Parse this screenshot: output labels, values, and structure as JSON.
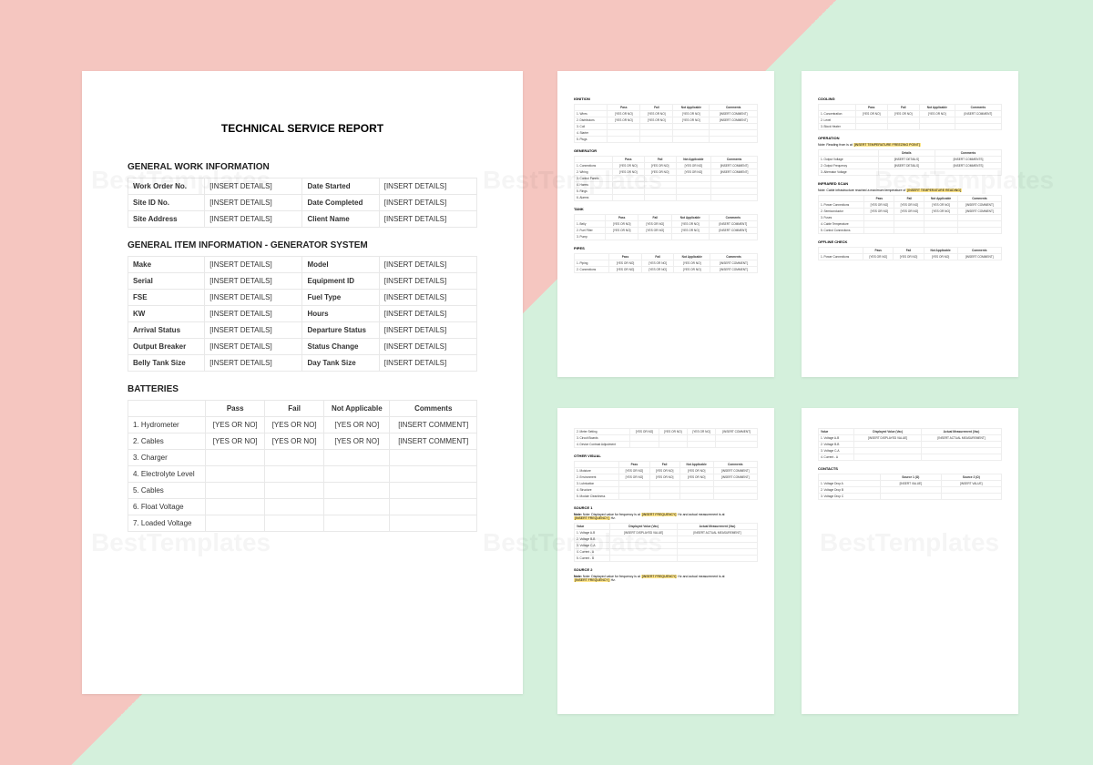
{
  "watermark_text": "BestTemplates",
  "main": {
    "title": "TECHNICAL SERVICE REPORT",
    "general_work": {
      "heading": "GENERAL WORK INFORMATION",
      "rows": [
        {
          "l1": "Work Order No.",
          "v1": "[INSERT DETAILS]",
          "l2": "Date Started",
          "v2": "[INSERT DETAILS]"
        },
        {
          "l1": "Site ID No.",
          "v1": "[INSERT DETAILS]",
          "l2": "Date Completed",
          "v2": "[INSERT DETAILS]"
        },
        {
          "l1": "Site Address",
          "v1": "[INSERT DETAILS]",
          "l2": "Client Name",
          "v2": "[INSERT DETAILS]"
        }
      ]
    },
    "general_item": {
      "heading": "GENERAL ITEM INFORMATION - GENERATOR SYSTEM",
      "rows": [
        {
          "l1": "Make",
          "v1": "[INSERT DETAILS]",
          "l2": "Model",
          "v2": "[INSERT DETAILS]"
        },
        {
          "l1": "Serial",
          "v1": "[INSERT DETAILS]",
          "l2": "Equipment ID",
          "v2": "[INSERT DETAILS]"
        },
        {
          "l1": "FSE",
          "v1": "[INSERT DETAILS]",
          "l2": "Fuel Type",
          "v2": "[INSERT DETAILS]"
        },
        {
          "l1": "KW",
          "v1": "[INSERT DETAILS]",
          "l2": "Hours",
          "v2": "[INSERT DETAILS]"
        },
        {
          "l1": "Arrival Status",
          "v1": "[INSERT DETAILS]",
          "l2": "Departure Status",
          "v2": "[INSERT DETAILS]"
        },
        {
          "l1": "Output Breaker",
          "v1": "[INSERT DETAILS]",
          "l2": "Status Change",
          "v2": "[INSERT DETAILS]"
        },
        {
          "l1": "Belly Tank Size",
          "v1": "[INSERT DETAILS]",
          "l2": "Day Tank Size",
          "v2": "[INSERT DETAILS]"
        }
      ]
    },
    "batteries": {
      "heading": "BATTERIES",
      "headers": [
        "",
        "Pass",
        "Fail",
        "Not Applicable",
        "Comments"
      ],
      "rows": [
        {
          "n": "1. Hydrometer",
          "p": "[YES OR NO]",
          "f": "[YES OR NO]",
          "na": "[YES OR NO]",
          "c": "[INSERT COMMENT]"
        },
        {
          "n": "2. Cables",
          "p": "[YES OR NO]",
          "f": "[YES OR NO]",
          "na": "[YES OR NO]",
          "c": "[INSERT COMMENT]"
        },
        {
          "n": "3. Charger",
          "p": "",
          "f": "",
          "na": "",
          "c": ""
        },
        {
          "n": "4. Electrolyte Level",
          "p": "",
          "f": "",
          "na": "",
          "c": ""
        },
        {
          "n": "5. Cables",
          "p": "",
          "f": "",
          "na": "",
          "c": ""
        },
        {
          "n": "6. Float Voltage",
          "p": "",
          "f": "",
          "na": "",
          "c": ""
        },
        {
          "n": "7. Loaded Voltage",
          "p": "",
          "f": "",
          "na": "",
          "c": ""
        }
      ]
    }
  },
  "p2": {
    "sections": [
      {
        "title": "IGNITION",
        "cols": [
          "",
          "Pass",
          "Fail",
          "Not Applicable",
          "Comments"
        ],
        "rows": [
          {
            "n": "1. Wires",
            "p": "[YES OR NO]",
            "f": "[YES OR NO]",
            "na": "[YES OR NO]",
            "c": "[INSERT COMMENT]"
          },
          {
            "n": "2. Distributors",
            "p": "[YES OR NO]",
            "f": "[YES OR NO]",
            "na": "[YES OR NO]",
            "c": "[INSERT COMMENT]"
          },
          {
            "n": "3. Coil",
            "p": "",
            "f": "",
            "na": "",
            "c": ""
          },
          {
            "n": "4. Starter",
            "p": "",
            "f": "",
            "na": "",
            "c": ""
          },
          {
            "n": "5. Plugs",
            "p": "",
            "f": "",
            "na": "",
            "c": ""
          }
        ]
      },
      {
        "title": "GENERATOR",
        "cols": [
          "",
          "Pass",
          "Fail",
          "Not Applicable",
          "Comments"
        ],
        "rows": [
          {
            "n": "1. Connections",
            "p": "[YES OR NO]",
            "f": "[YES OR NO]",
            "na": "[YES OR NO]",
            "c": "[INSERT COMMENT]"
          },
          {
            "n": "2. Wiring",
            "p": "[YES OR NO]",
            "f": "[YES OR NO]",
            "na": "[YES OR NO]",
            "c": "[INSERT COMMENT]"
          },
          {
            "n": "3. Control Panels",
            "p": "",
            "f": "",
            "na": "",
            "c": ""
          },
          {
            "n": "4. Harms",
            "p": "",
            "f": "",
            "na": "",
            "c": ""
          },
          {
            "n": "5. Rings",
            "p": "",
            "f": "",
            "na": "",
            "c": ""
          },
          {
            "n": "6. Alarms",
            "p": "",
            "f": "",
            "na": "",
            "c": ""
          }
        ]
      },
      {
        "title": "TANK",
        "cols": [
          "",
          "Pass",
          "Fail",
          "Not Applicable",
          "Comments"
        ],
        "rows": [
          {
            "n": "1. Belly",
            "p": "[YES OR NO]",
            "f": "[YES OR NO]",
            "na": "[YES OR NO]",
            "c": "[INSERT COMMENT]"
          },
          {
            "n": "2. Fuel Filter",
            "p": "[YES OR NO]",
            "f": "[YES OR NO]",
            "na": "[YES OR NO]",
            "c": "[INSERT COMMENT]"
          },
          {
            "n": "3. Pump",
            "p": "",
            "f": "",
            "na": "",
            "c": ""
          }
        ]
      },
      {
        "title": "PIPES",
        "cols": [
          "",
          "Pass",
          "Fail",
          "Not Applicable",
          "Comments"
        ],
        "rows": [
          {
            "n": "1. Piping",
            "p": "[YES OR NO]",
            "f": "[YES OR NO]",
            "na": "[YES OR NO]",
            "c": "[INSERT COMMENT]"
          },
          {
            "n": "2. Connections",
            "p": "[YES OR NO]",
            "f": "[YES OR NO]",
            "na": "[YES OR NO]",
            "c": "[INSERT COMMENT]"
          }
        ]
      }
    ]
  },
  "p3": {
    "cooling": {
      "title": "COOLING",
      "cols": [
        "",
        "Pass",
        "Fail",
        "Not Applicable",
        "Comments"
      ],
      "rows": [
        {
          "n": "1. Concentration",
          "p": "[YES OR NO]",
          "f": "[YES OR NO]",
          "na": "[YES OR NO]",
          "c": "[INSERT COMMENT]"
        },
        {
          "n": "2. Level",
          "p": "",
          "f": "",
          "na": "",
          "c": ""
        },
        {
          "n": "3. Block Heater",
          "p": "",
          "f": "",
          "na": "",
          "c": ""
        }
      ]
    },
    "operation": {
      "title": "OPERATION",
      "note_pre": "Note: Reading from is at ",
      "note_hl": "[INSERT TEMPERATURE FREEZING POINT]",
      "cols": [
        "",
        "Details",
        "Comments"
      ],
      "rows": [
        {
          "n": "1. Output Voltage",
          "d": "[INSERT DETAILS]",
          "c": "[INSERT COMMENTS]"
        },
        {
          "n": "2. Output Frequency",
          "d": "[INSERT DETAILS]",
          "c": "[INSERT COMMENTS]"
        },
        {
          "n": "3. Alternator Voltage",
          "d": "",
          "c": ""
        }
      ]
    },
    "infrared": {
      "title": "INFRARED SCAN",
      "note_pre": "Note: Cable infrastructure reached a maximum temperature of ",
      "note_hl": "[INSERT TEMPERATURE READING]",
      "cols": [
        "",
        "Pass",
        "Fail",
        "Not Applicable",
        "Comments"
      ],
      "rows": [
        {
          "n": "1. Power Connections",
          "p": "[YES OR NO]",
          "f": "[YES OR NO]",
          "na": "[YES OR NO]",
          "c": "[INSERT COMMENT]"
        },
        {
          "n": "2. Semiconductor",
          "p": "[YES OR NO]",
          "f": "[YES OR NO]",
          "na": "[YES OR NO]",
          "c": "[INSERT COMMENT]"
        },
        {
          "n": "3. Fuses",
          "p": "",
          "f": "",
          "na": "",
          "c": ""
        },
        {
          "n": "4. Cable Temperature",
          "p": "",
          "f": "",
          "na": "",
          "c": ""
        },
        {
          "n": "5. Control Connections",
          "p": "",
          "f": "",
          "na": "",
          "c": ""
        }
      ]
    },
    "offline": {
      "title": "OFFLINE CHECK",
      "cols": [
        "",
        "Pass",
        "Fail",
        "Not Applicable",
        "Comments"
      ],
      "rows": [
        {
          "n": "1. Power Connections",
          "p": "[YES OR NO]",
          "f": "[YES OR NO]",
          "na": "[YES OR NO]",
          "c": "[INSERT COMMENT]"
        }
      ]
    }
  },
  "p4": {
    "top_rows": [
      {
        "n": "2. Meter Setting",
        "p": "[YES OR NO]",
        "f": "[YES OR NO]",
        "na": "[YES OR NO]",
        "c": "[INSERT COMMENT]"
      },
      {
        "n": "3. Circuit Boards",
        "p": "",
        "f": "",
        "na": "",
        "c": ""
      },
      {
        "n": "4. Device Contrast Adjustment",
        "p": "",
        "f": "",
        "na": "",
        "c": ""
      }
    ],
    "other": {
      "title": "OTHER VISUAL",
      "cols": [
        "",
        "Pass",
        "Fail",
        "Not Applicable",
        "Comments"
      ],
      "rows": [
        {
          "n": "1. Moisture",
          "p": "[YES OR NO]",
          "f": "[YES OR NO]",
          "na": "[YES OR NO]",
          "c": "[INSERT COMMENT]"
        },
        {
          "n": "2. Environment",
          "p": "[YES OR NO]",
          "f": "[YES OR NO]",
          "na": "[YES OR NO]",
          "c": "[INSERT COMMENT]"
        },
        {
          "n": "3. Lubrication",
          "p": "",
          "f": "",
          "na": "",
          "c": ""
        },
        {
          "n": "4. Structure",
          "p": "",
          "f": "",
          "na": "",
          "c": ""
        },
        {
          "n": "5. Module Cleanliness",
          "p": "",
          "f": "",
          "na": "",
          "c": ""
        }
      ]
    },
    "source1": {
      "title": "SOURCE 1",
      "note1": "Note: Displayed value for frequency is at ",
      "hl1": "[INSERT FREQUENCY]",
      "note2": " Hz and actual measurement is at ",
      "hl2": "[INSERT FREQUENCY]",
      "note_suf": " Hz.",
      "cols": [
        "Value",
        "Displayed Value (Vac)",
        "Actual Measurement (Vac)"
      ],
      "rows": [
        {
          "n": "1. Voltage A-B",
          "d": "[INSERT DISPLAYED VALUE]",
          "a": "[INSERT ACTUAL MEASUREMENT]"
        },
        {
          "n": "2. Voltage B-B",
          "d": "",
          "a": ""
        },
        {
          "n": "3. Voltage C-A",
          "d": "",
          "a": ""
        },
        {
          "n": "4. Current - A",
          "d": "",
          "a": ""
        },
        {
          "n": "5. Current - B",
          "d": "",
          "a": ""
        }
      ]
    },
    "source2": {
      "title": "SOURCE 2",
      "note1": "Note: Displayed value for frequency is at ",
      "hl1": "[INSERT FREQUENCY]",
      "note2": " Hz and actual measurement is at ",
      "hl2": "[INSERT FREQUENCY]",
      "note_suf": " Hz."
    }
  },
  "p5": {
    "top": {
      "cols": [
        "Value",
        "Displayed Value (Vac)",
        "Actual Measurement (Vac)"
      ],
      "rows": [
        {
          "n": "1. Voltage A-B",
          "d": "[INSERT DISPLAYED VALUE]",
          "a": "[INSERT ACTUAL MEASUREMENT]"
        },
        {
          "n": "2. Voltage B-B",
          "d": "",
          "a": ""
        },
        {
          "n": "3. Voltage C-A",
          "d": "",
          "a": ""
        },
        {
          "n": "4. Current - A",
          "d": "",
          "a": ""
        }
      ]
    },
    "contacts": {
      "title": "CONTACTS",
      "cols": [
        "",
        "Source 1 (Ω)",
        "Source 2 (Ω)"
      ],
      "rows": [
        {
          "n": "1. Voltage Drop A",
          "d": "[INSERT VALUE]",
          "a": "[INSERT VALUE]"
        },
        {
          "n": "2. Voltage Drop B",
          "d": "",
          "a": ""
        },
        {
          "n": "3. Voltage Drop C",
          "d": "",
          "a": ""
        }
      ]
    }
  }
}
